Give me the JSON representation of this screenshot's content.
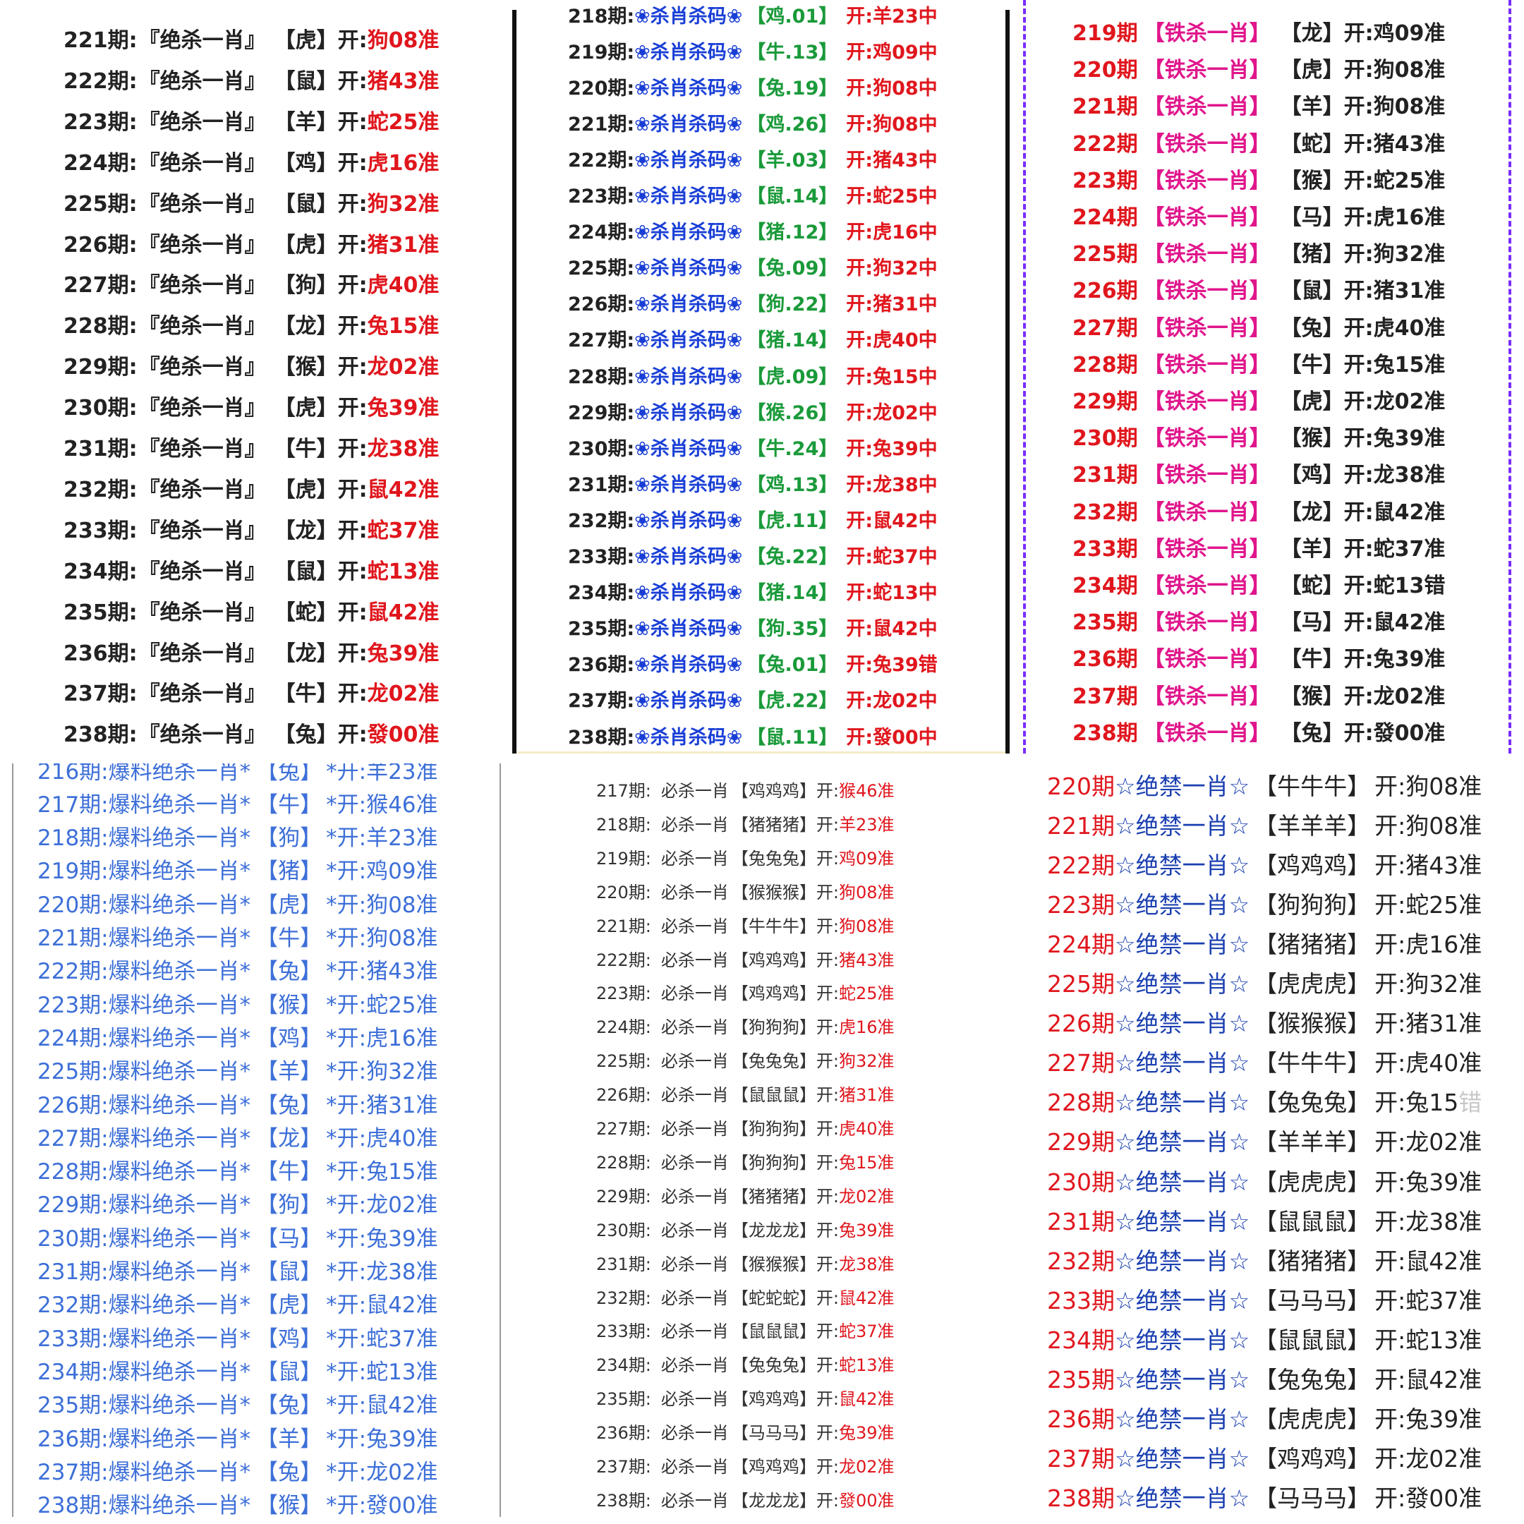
{
  "panels": [
    {
      "rows": [
        [
          "221期:",
          "『绝杀一肖』",
          "【虎】",
          "开:",
          "狗08准"
        ],
        [
          "222期:",
          "『绝杀一肖』",
          "【鼠】",
          "开:",
          "猪43准"
        ],
        [
          "223期:",
          "『绝杀一肖』",
          "【羊】",
          "开:",
          "蛇25准"
        ],
        [
          "224期:",
          "『绝杀一肖』",
          "【鸡】",
          "开:",
          "虎16准"
        ],
        [
          "225期:",
          "『绝杀一肖』",
          "【鼠】",
          "开:",
          "狗32准"
        ],
        [
          "226期:",
          "『绝杀一肖』",
          "【虎】",
          "开:",
          "猪31准"
        ],
        [
          "227期:",
          "『绝杀一肖』",
          "【狗】",
          "开:",
          "虎40准"
        ],
        [
          "228期:",
          "『绝杀一肖』",
          "【龙】",
          "开:",
          "兔15准"
        ],
        [
          "229期:",
          "『绝杀一肖』",
          "【猴】",
          "开:",
          "龙02准"
        ],
        [
          "230期:",
          "『绝杀一肖』",
          "【虎】",
          "开:",
          "兔39准"
        ],
        [
          "231期:",
          "『绝杀一肖』",
          "【牛】",
          "开:",
          "龙38准"
        ],
        [
          "232期:",
          "『绝杀一肖』",
          "【虎】",
          "开:",
          "鼠42准"
        ],
        [
          "233期:",
          "『绝杀一肖』",
          "【龙】",
          "开:",
          "蛇37准"
        ],
        [
          "234期:",
          "『绝杀一肖』",
          "【鼠】",
          "开:",
          "蛇13准"
        ],
        [
          "235期:",
          "『绝杀一肖』",
          "【蛇】",
          "开:",
          "鼠42准"
        ],
        [
          "236期:",
          "『绝杀一肖』",
          "【龙】",
          "开:",
          "兔39准"
        ],
        [
          "237期:",
          "『绝杀一肖』",
          "【牛】",
          "开:",
          "龙02准"
        ],
        [
          "238期:",
          "『绝杀一肖』",
          "【兔】",
          "开:",
          "發00准"
        ]
      ]
    },
    {
      "rows": [
        [
          "218期:",
          "❀杀肖杀码❀",
          "【鸡.01】",
          "开:羊23中"
        ],
        [
          "219期:",
          "❀杀肖杀码❀",
          "【牛.13】",
          "开:鸡09中"
        ],
        [
          "220期:",
          "❀杀肖杀码❀",
          "【兔.19】",
          "开:狗08中"
        ],
        [
          "221期:",
          "❀杀肖杀码❀",
          "【鸡.26】",
          "开:狗08中"
        ],
        [
          "222期:",
          "❀杀肖杀码❀",
          "【羊.03】",
          "开:猪43中"
        ],
        [
          "223期:",
          "❀杀肖杀码❀",
          "【鼠.14】",
          "开:蛇25中"
        ],
        [
          "224期:",
          "❀杀肖杀码❀",
          "【猪.12】",
          "开:虎16中"
        ],
        [
          "225期:",
          "❀杀肖杀码❀",
          "【兔.09】",
          "开:狗32中"
        ],
        [
          "226期:",
          "❀杀肖杀码❀",
          "【狗.22】",
          "开:猪31中"
        ],
        [
          "227期:",
          "❀杀肖杀码❀",
          "【猪.14】",
          "开:虎40中"
        ],
        [
          "228期:",
          "❀杀肖杀码❀",
          "【虎.09】",
          "开:兔15中"
        ],
        [
          "229期:",
          "❀杀肖杀码❀",
          "【猴.26】",
          "开:龙02中"
        ],
        [
          "230期:",
          "❀杀肖杀码❀",
          "【牛.24】",
          "开:兔39中"
        ],
        [
          "231期:",
          "❀杀肖杀码❀",
          "【鸡.13】",
          "开:龙38中"
        ],
        [
          "232期:",
          "❀杀肖杀码❀",
          "【虎.11】",
          "开:鼠42中"
        ],
        [
          "233期:",
          "❀杀肖杀码❀",
          "【兔.22】",
          "开:蛇37中"
        ],
        [
          "234期:",
          "❀杀肖杀码❀",
          "【猪.14】",
          "开:蛇13中"
        ],
        [
          "235期:",
          "❀杀肖杀码❀",
          "【狗.35】",
          "开:鼠42中"
        ],
        [
          "236期:",
          "❀杀肖杀码❀",
          "【兔.01】",
          "开:兔39错"
        ],
        [
          "237期:",
          "❀杀肖杀码❀",
          "【虎.22】",
          "开:龙02中"
        ],
        [
          "238期:",
          "❀杀肖杀码❀",
          "【鼠.11】",
          "开:發00中"
        ]
      ]
    },
    {
      "rows": [
        [
          "219期",
          "【铁杀一肖】",
          "【龙】",
          "开:鸡09准"
        ],
        [
          "220期",
          "【铁杀一肖】",
          "【虎】",
          "开:狗08准"
        ],
        [
          "221期",
          "【铁杀一肖】",
          "【羊】",
          "开:狗08准"
        ],
        [
          "222期",
          "【铁杀一肖】",
          "【蛇】",
          "开:猪43准"
        ],
        [
          "223期",
          "【铁杀一肖】",
          "【猴】",
          "开:蛇25准"
        ],
        [
          "224期",
          "【铁杀一肖】",
          "【马】",
          "开:虎16准"
        ],
        [
          "225期",
          "【铁杀一肖】",
          "【猪】",
          "开:狗32准"
        ],
        [
          "226期",
          "【铁杀一肖】",
          "【鼠】",
          "开:猪31准"
        ],
        [
          "227期",
          "【铁杀一肖】",
          "【兔】",
          "开:虎40准"
        ],
        [
          "228期",
          "【铁杀一肖】",
          "【牛】",
          "开:兔15准"
        ],
        [
          "229期",
          "【铁杀一肖】",
          "【虎】",
          "开:龙02准"
        ],
        [
          "230期",
          "【铁杀一肖】",
          "【猴】",
          "开:兔39准"
        ],
        [
          "231期",
          "【铁杀一肖】",
          "【鸡】",
          "开:龙38准"
        ],
        [
          "232期",
          "【铁杀一肖】",
          "【龙】",
          "开:鼠42准"
        ],
        [
          "233期",
          "【铁杀一肖】",
          "【羊】",
          "开:蛇37准"
        ],
        [
          "234期",
          "【铁杀一肖】",
          "【蛇】",
          "开:蛇13错"
        ],
        [
          "235期",
          "【铁杀一肖】",
          "【马】",
          "开:鼠42准"
        ],
        [
          "236期",
          "【铁杀一肖】",
          "【牛】",
          "开:兔39准"
        ],
        [
          "237期",
          "【铁杀一肖】",
          "【猴】",
          "开:龙02准"
        ],
        [
          "238期",
          "【铁杀一肖】",
          "【兔】",
          "开:發00准"
        ]
      ]
    },
    {
      "rows": [
        [
          "216期:爆料绝杀一肖*",
          "【兔】",
          "*开:羊23准"
        ],
        [
          "217期:爆料绝杀一肖*",
          "【牛】",
          "*开:猴46准"
        ],
        [
          "218期:爆料绝杀一肖*",
          "【狗】",
          "*开:羊23准"
        ],
        [
          "219期:爆料绝杀一肖*",
          "【猪】",
          "*开:鸡09准"
        ],
        [
          "220期:爆料绝杀一肖*",
          "【虎】",
          "*开:狗08准"
        ],
        [
          "221期:爆料绝杀一肖*",
          "【牛】",
          "*开:狗08准"
        ],
        [
          "222期:爆料绝杀一肖*",
          "【兔】",
          "*开:猪43准"
        ],
        [
          "223期:爆料绝杀一肖*",
          "【猴】",
          "*开:蛇25准"
        ],
        [
          "224期:爆料绝杀一肖*",
          "【鸡】",
          "*开:虎16准"
        ],
        [
          "225期:爆料绝杀一肖*",
          "【羊】",
          "*开:狗32准"
        ],
        [
          "226期:爆料绝杀一肖*",
          "【兔】",
          "*开:猪31准"
        ],
        [
          "227期:爆料绝杀一肖*",
          "【龙】",
          "*开:虎40准"
        ],
        [
          "228期:爆料绝杀一肖*",
          "【牛】",
          "*开:兔15准"
        ],
        [
          "229期:爆料绝杀一肖*",
          "【狗】",
          "*开:龙02准"
        ],
        [
          "230期:爆料绝杀一肖*",
          "【马】",
          "*开:兔39准"
        ],
        [
          "231期:爆料绝杀一肖*",
          "【鼠】",
          "*开:龙38准"
        ],
        [
          "232期:爆料绝杀一肖*",
          "【虎】",
          "*开:鼠42准"
        ],
        [
          "233期:爆料绝杀一肖*",
          "【鸡】",
          "*开:蛇37准"
        ],
        [
          "234期:爆料绝杀一肖*",
          "【鼠】",
          "*开:蛇13准"
        ],
        [
          "235期:爆料绝杀一肖*",
          "【兔】",
          "*开:鼠42准"
        ],
        [
          "236期:爆料绝杀一肖*",
          "【羊】",
          "*开:兔39准"
        ],
        [
          "237期:爆料绝杀一肖*",
          "【兔】",
          "*开:龙02准"
        ],
        [
          "238期:爆料绝杀一肖*",
          "【猴】",
          "*开:發00准"
        ]
      ]
    },
    {
      "rows": [
        [
          "217期:",
          "必杀一肖",
          "【鸡鸡鸡】",
          "开:",
          "猴46准"
        ],
        [
          "218期:",
          "必杀一肖",
          "【猪猪猪】",
          "开:",
          "羊23准"
        ],
        [
          "219期:",
          "必杀一肖",
          "【兔兔兔】",
          "开:",
          "鸡09准"
        ],
        [
          "220期:",
          "必杀一肖",
          "【猴猴猴】",
          "开:",
          "狗08准"
        ],
        [
          "221期:",
          "必杀一肖",
          "【牛牛牛】",
          "开:",
          "狗08准"
        ],
        [
          "222期:",
          "必杀一肖",
          "【鸡鸡鸡】",
          "开:",
          "猪43准"
        ],
        [
          "223期:",
          "必杀一肖",
          "【鸡鸡鸡】",
          "开:",
          "蛇25准"
        ],
        [
          "224期:",
          "必杀一肖",
          "【狗狗狗】",
          "开:",
          "虎16准"
        ],
        [
          "225期:",
          "必杀一肖",
          "【兔兔兔】",
          "开:",
          "狗32准"
        ],
        [
          "226期:",
          "必杀一肖",
          "【鼠鼠鼠】",
          "开:",
          "猪31准"
        ],
        [
          "227期:",
          "必杀一肖",
          "【狗狗狗】",
          "开:",
          "虎40准"
        ],
        [
          "228期:",
          "必杀一肖",
          "【狗狗狗】",
          "开:",
          "兔15准"
        ],
        [
          "229期:",
          "必杀一肖",
          "【猪猪猪】",
          "开:",
          "龙02准"
        ],
        [
          "230期:",
          "必杀一肖",
          "【龙龙龙】",
          "开:",
          "兔39准"
        ],
        [
          "231期:",
          "必杀一肖",
          "【猴猴猴】",
          "开:",
          "龙38准"
        ],
        [
          "232期:",
          "必杀一肖",
          "【蛇蛇蛇】",
          "开:",
          "鼠42准"
        ],
        [
          "233期:",
          "必杀一肖",
          "【鼠鼠鼠】",
          "开:",
          "蛇37准"
        ],
        [
          "234期:",
          "必杀一肖",
          "【兔兔兔】",
          "开:",
          "蛇13准"
        ],
        [
          "235期:",
          "必杀一肖",
          "【鸡鸡鸡】",
          "开:",
          "鼠42准"
        ],
        [
          "236期:",
          "必杀一肖",
          "【马马马】",
          "开:",
          "兔39准"
        ],
        [
          "237期:",
          "必杀一肖",
          "【鸡鸡鸡】",
          "开:",
          "龙02准"
        ],
        [
          "238期:",
          "必杀一肖",
          "【龙龙龙】",
          "开:",
          "發00准"
        ]
      ]
    },
    {
      "rows": [
        [
          "220期",
          "☆绝禁一肖☆",
          "【牛牛牛】",
          "开:狗08",
          "准"
        ],
        [
          "221期",
          "☆绝禁一肖☆",
          "【羊羊羊】",
          "开:狗08",
          "准"
        ],
        [
          "222期",
          "☆绝禁一肖☆",
          "【鸡鸡鸡】",
          "开:猪43",
          "准"
        ],
        [
          "223期",
          "☆绝禁一肖☆",
          "【狗狗狗】",
          "开:蛇25",
          "准"
        ],
        [
          "224期",
          "☆绝禁一肖☆",
          "【猪猪猪】",
          "开:虎16",
          "准"
        ],
        [
          "225期",
          "☆绝禁一肖☆",
          "【虎虎虎】",
          "开:狗32",
          "准"
        ],
        [
          "226期",
          "☆绝禁一肖☆",
          "【猴猴猴】",
          "开:猪31",
          "准"
        ],
        [
          "227期",
          "☆绝禁一肖☆",
          "【牛牛牛】",
          "开:虎40",
          "准"
        ],
        [
          "228期",
          "☆绝禁一肖☆",
          "【兔兔兔】",
          "开:兔15",
          "错"
        ],
        [
          "229期",
          "☆绝禁一肖☆",
          "【羊羊羊】",
          "开:龙02",
          "准"
        ],
        [
          "230期",
          "☆绝禁一肖☆",
          "【虎虎虎】",
          "开:兔39",
          "准"
        ],
        [
          "231期",
          "☆绝禁一肖☆",
          "【鼠鼠鼠】",
          "开:龙38",
          "准"
        ],
        [
          "232期",
          "☆绝禁一肖☆",
          "【猪猪猪】",
          "开:鼠42",
          "准"
        ],
        [
          "233期",
          "☆绝禁一肖☆",
          "【马马马】",
          "开:蛇37",
          "准"
        ],
        [
          "234期",
          "☆绝禁一肖☆",
          "【鼠鼠鼠】",
          "开:蛇13",
          "准"
        ],
        [
          "235期",
          "☆绝禁一肖☆",
          "【兔兔兔】",
          "开:鼠42",
          "准"
        ],
        [
          "236期",
          "☆绝禁一肖☆",
          "【虎虎虎】",
          "开:兔39",
          "准"
        ],
        [
          "237期",
          "☆绝禁一肖☆",
          "【鸡鸡鸡】",
          "开:龙02",
          "准"
        ],
        [
          "238期",
          "☆绝禁一肖☆",
          "【马马马】",
          "开:發00",
          "准"
        ]
      ]
    }
  ]
}
